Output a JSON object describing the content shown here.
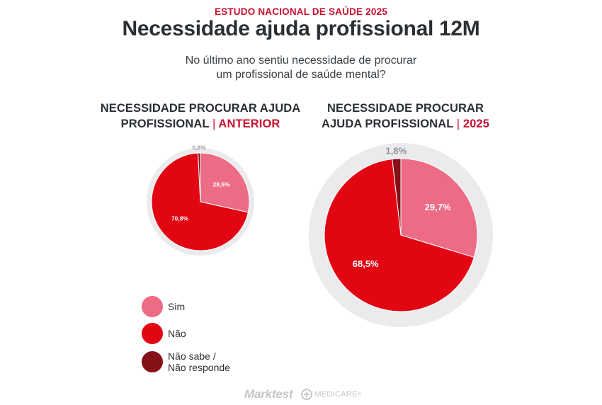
{
  "header": {
    "kicker": "ESTUDO NACIONAL DE SAÚDE 2025",
    "title": "Necessidade ajuda profissional 12M",
    "subtitle_line1": "No último ano sentiu necessidade de procurar",
    "subtitle_line2": "um profissional de saúde mental?"
  },
  "colors": {
    "sim": "#ec6b85",
    "nao": "#e20613",
    "nao_sabe": "#861018",
    "ring": "#ebebed"
  },
  "chart_data": [
    {
      "type": "pie",
      "title_line1": "NECESSIDADE PROCURAR AJUDA",
      "title_line2": "PROFISSIONAL",
      "title_tag": "ANTERIOR",
      "categories": [
        "Sim",
        "Não",
        "Não sabe / Não responde"
      ],
      "values": [
        28.5,
        70.8,
        0.8
      ],
      "labels": [
        "28,5%",
        "70,8%",
        "0,8%"
      ]
    },
    {
      "type": "pie",
      "title_line1": "NECESSIDADE PROCURAR",
      "title_line2": "AJUDA PROFISSIONAL",
      "title_tag": "2025",
      "categories": [
        "Sim",
        "Não",
        "Não sabe / Não responde"
      ],
      "values": [
        29.7,
        68.5,
        1.8
      ],
      "labels": [
        "29,7%",
        "68,5%",
        "1,8%"
      ]
    }
  ],
  "legend": {
    "items": [
      {
        "key": "sim",
        "label_line1": "Sim",
        "label_line2": ""
      },
      {
        "key": "nao",
        "label_line1": "Não",
        "label_line2": ""
      },
      {
        "key": "nao_sabe",
        "label_line1": "Não sabe /",
        "label_line2": "Não responde"
      }
    ]
  },
  "footer": {
    "brand1": "Marktest",
    "brand2": "MEDICARE",
    "brand2_mark": "®"
  }
}
